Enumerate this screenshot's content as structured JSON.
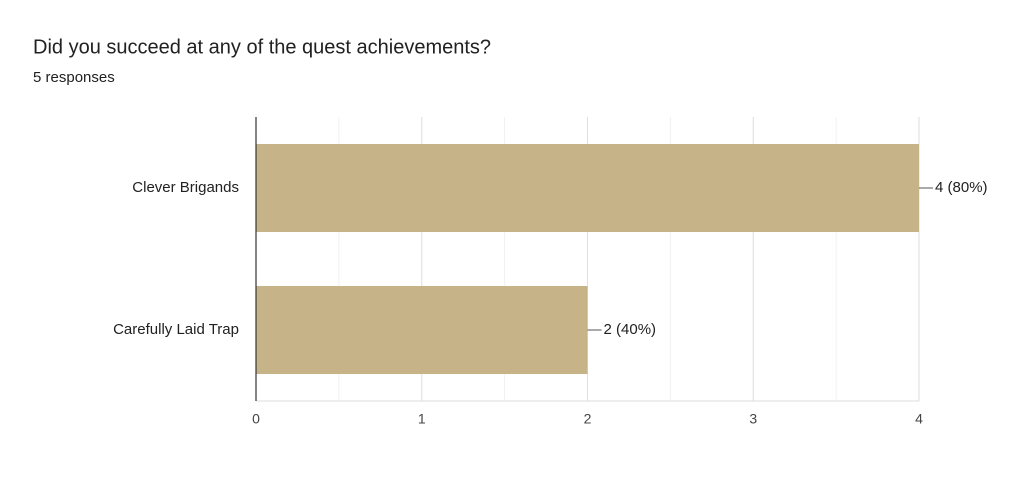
{
  "chart_data": {
    "type": "hbar",
    "title": "Did you succeed at any of the quest achievements?",
    "subtitle": "5 responses",
    "categories": [
      "Clever Brigands",
      "Carefully Laid Trap"
    ],
    "values": [
      4,
      2
    ],
    "value_labels": [
      "4 (80%)",
      "2 (40%)"
    ],
    "color": "#c6b388",
    "xlim": [
      0,
      4
    ],
    "xticks": [
      0,
      1,
      2,
      3,
      4
    ],
    "xminorticks": [
      0.5,
      1.5,
      2.5,
      3.5
    ],
    "grid": true
  }
}
